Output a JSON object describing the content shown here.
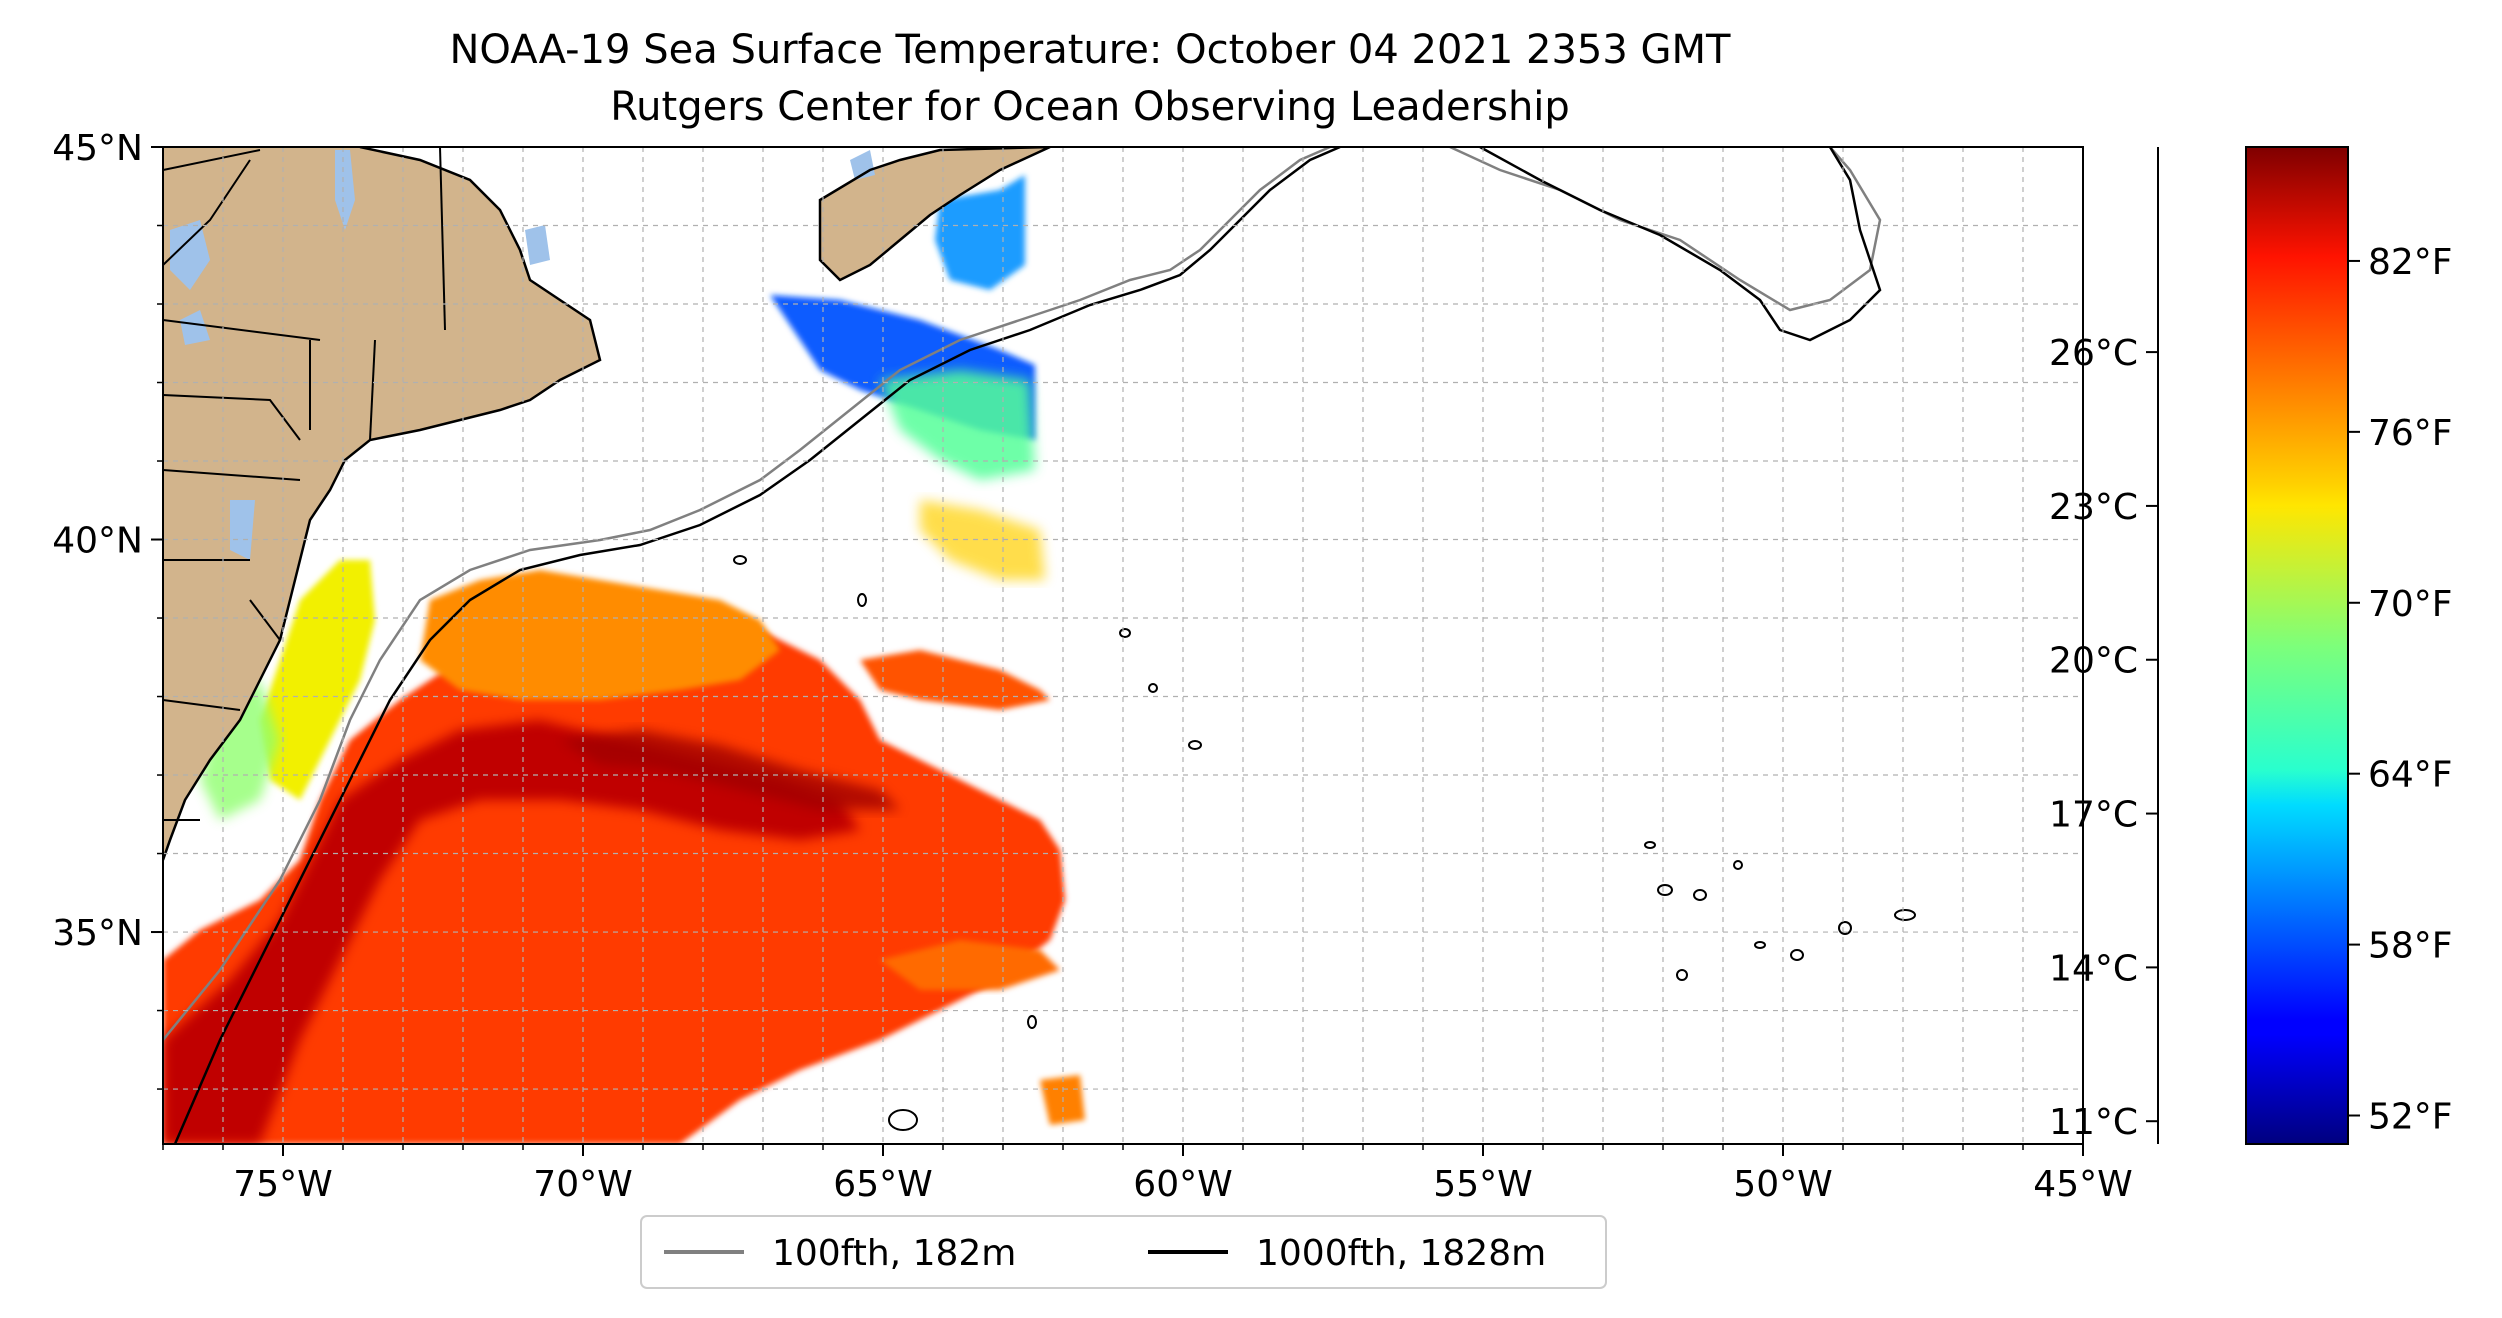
{
  "title": {
    "line1": "NOAA-19 Sea Surface Temperature: October 04 2021 2353 GMT",
    "line2": "Rutgers Center for Ocean Observing Leadership"
  },
  "map": {
    "lon_range": [
      -77,
      -45
    ],
    "lat_range": [
      32.3,
      45
    ],
    "x_ticks": [
      {
        "lon": -75,
        "label": "75°W"
      },
      {
        "lon": -70,
        "label": "70°W"
      },
      {
        "lon": -65,
        "label": "65°W"
      },
      {
        "lon": -60,
        "label": "60°W"
      },
      {
        "lon": -55,
        "label": "55°W"
      },
      {
        "lon": -50,
        "label": "50°W"
      },
      {
        "lon": -45,
        "label": "45°W"
      }
    ],
    "y_ticks": [
      {
        "lat": 45,
        "label": "45°N"
      },
      {
        "lat": 40,
        "label": "40°N"
      },
      {
        "lat": 35,
        "label": "35°N"
      }
    ],
    "grid": true,
    "colors": {
      "land": "#d2b48c",
      "lakes": "#9fc2ea",
      "bathy_100": "#808080",
      "bathy_1000": "#000000"
    }
  },
  "legend": {
    "placement": "bottom-center",
    "items": [
      {
        "label": "100fth, 182m",
        "color": "#808080"
      },
      {
        "label": "1000fth, 1828m",
        "color": "#000000"
      }
    ]
  },
  "colorbar": {
    "colormap": "jet",
    "range_f": [
      51,
      86
    ],
    "f_ticks": [
      {
        "value": 82,
        "label": "82°F"
      },
      {
        "value": 76,
        "label": "76°F"
      },
      {
        "value": 70,
        "label": "70°F"
      },
      {
        "value": 64,
        "label": "64°F"
      },
      {
        "value": 58,
        "label": "58°F"
      },
      {
        "value": 52,
        "label": "52°F"
      }
    ],
    "c_ticks": [
      {
        "value": 26,
        "label": "26°C"
      },
      {
        "value": 23,
        "label": "23°C"
      },
      {
        "value": 20,
        "label": "20°C"
      },
      {
        "value": 17,
        "label": "17°C"
      },
      {
        "value": 14,
        "label": "14°C"
      },
      {
        "value": 11,
        "label": "11°C"
      }
    ]
  }
}
